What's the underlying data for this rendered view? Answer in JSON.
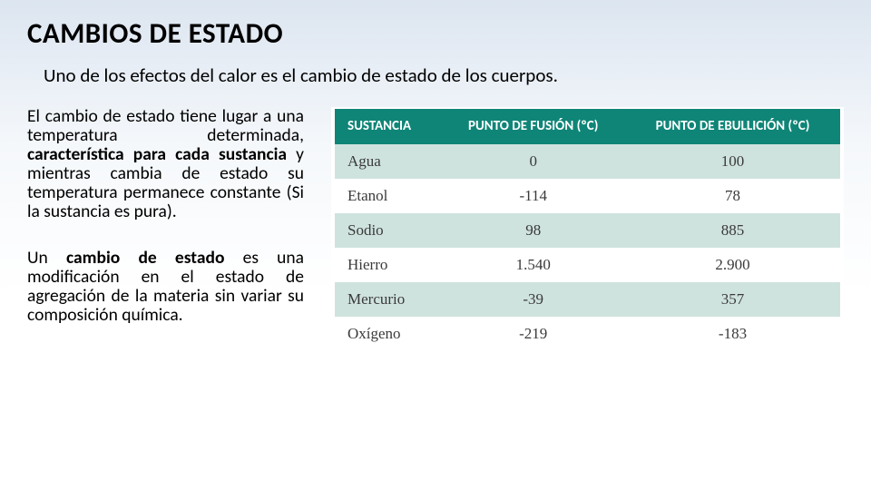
{
  "title": "CAMBIOS DE ESTADO",
  "subtitle": "Uno de los efectos del calor es el cambio de estado de los cuerpos.",
  "paragraphs": {
    "p1_a": "El cambio de estado tiene lugar a una temperatura determinada, ",
    "p1_b": "característica para cada sustancia",
    "p1_c": " y mientras cambia de estado su temperatura permanece constante (Si la sustancia es pura).",
    "p2_a": "Un ",
    "p2_b": "cambio de estado",
    "p2_c": " es una modificación en el estado de agregación de la materia sin variar su composición química."
  },
  "table": {
    "type": "table",
    "header_bg": "#0f8577",
    "header_fg": "#ffffff",
    "alt_row_bg": "#cfe3de",
    "row_bg": "#ffffff",
    "columns": [
      "SUSTANCIA",
      "PUNTO DE FUSIÓN (ºC)",
      "PUNTO DE EBULLICIÓN (ºC)"
    ],
    "rows": [
      {
        "sustancia": "Agua",
        "fusion": "0",
        "ebullicion": "100"
      },
      {
        "sustancia": "Etanol",
        "fusion": "-114",
        "ebullicion": "78"
      },
      {
        "sustancia": "Sodio",
        "fusion": "98",
        "ebullicion": "885"
      },
      {
        "sustancia": "Hierro",
        "fusion": "1.540",
        "ebullicion": "2.900"
      },
      {
        "sustancia": "Mercurio",
        "fusion": "-39",
        "ebullicion": "357"
      },
      {
        "sustancia": "Oxígeno",
        "fusion": "-219",
        "ebullicion": "-183"
      }
    ]
  }
}
